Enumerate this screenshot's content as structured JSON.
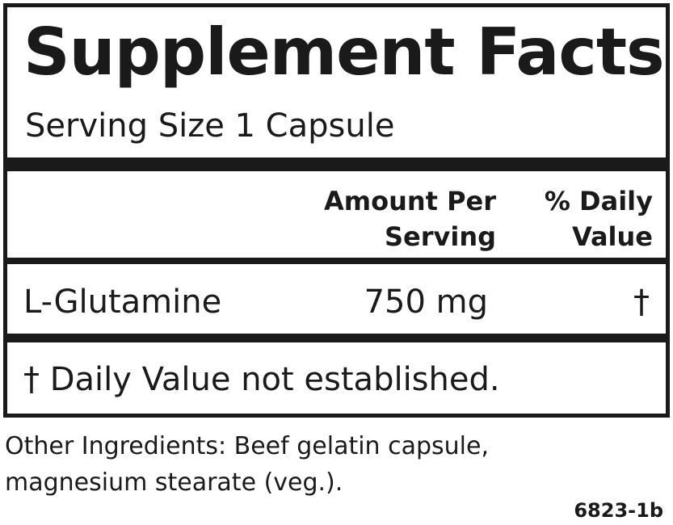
{
  "title": "Supplement Facts",
  "serving_size": "Serving Size 1 Capsule",
  "header": {
    "amount_line1": "Amount Per",
    "amount_line2": "Serving",
    "dv_line1": "% Daily",
    "dv_line2": "Value"
  },
  "rows": [
    {
      "name": "L-Glutamine",
      "amount": "750 mg",
      "dv": "†"
    }
  ],
  "footnote": "† Daily Value not established.",
  "other_ingredients": {
    "line1": "Other Ingredients:  Beef gelatin capsule,",
    "line2": "magnesium stearate (veg.)."
  },
  "code": "6823-1b"
}
